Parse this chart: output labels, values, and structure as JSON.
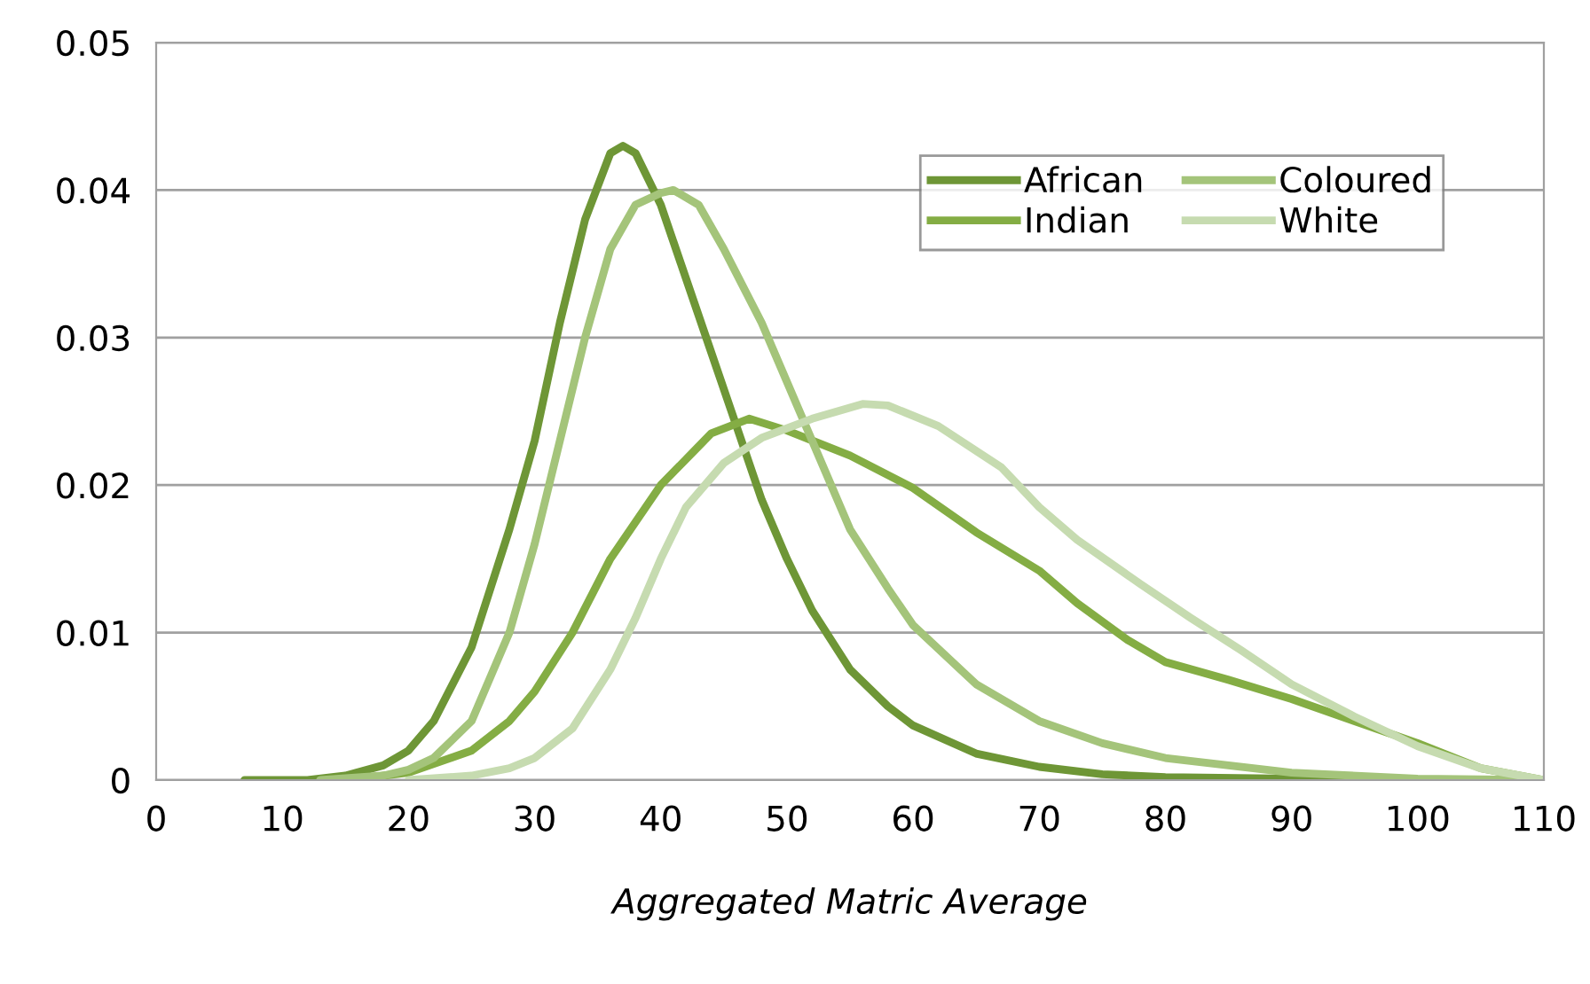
{
  "chart_data": {
    "type": "line",
    "xlabel": "Aggregated Matric Average",
    "xlim": [
      0,
      110
    ],
    "xticks": [
      0,
      10,
      20,
      30,
      40,
      50,
      60,
      70,
      80,
      90,
      100,
      110
    ],
    "ylim": [
      0,
      0.05
    ],
    "yticks": [
      {
        "value": 0,
        "label": "0"
      },
      {
        "value": 0.01,
        "label": "0.01"
      },
      {
        "value": 0.02,
        "label": "0.02"
      },
      {
        "value": 0.03,
        "label": "0.03"
      },
      {
        "value": 0.04,
        "label": "0.04"
      },
      {
        "value": 0.05,
        "label": "0.05"
      }
    ],
    "grid": "y",
    "legend": "top right",
    "marker": "none",
    "line_style": "solid",
    "series": [
      {
        "name": "African",
        "color": "#6e9636",
        "x": [
          7,
          12,
          15,
          18,
          20,
          22,
          25,
          28,
          30,
          32,
          34,
          36,
          37,
          38,
          40,
          42,
          44,
          46,
          48,
          50,
          52,
          55,
          58,
          60,
          65,
          70,
          75,
          80,
          90,
          105
        ],
        "values": [
          0,
          0,
          0.0003,
          0.001,
          0.002,
          0.004,
          0.009,
          0.017,
          0.023,
          0.031,
          0.038,
          0.0425,
          0.043,
          0.0425,
          0.039,
          0.034,
          0.029,
          0.024,
          0.019,
          0.015,
          0.0115,
          0.0075,
          0.005,
          0.0037,
          0.0018,
          0.0009,
          0.0004,
          0.0002,
          0.0001,
          0
        ]
      },
      {
        "name": "Indian",
        "color": "#84ad44",
        "x": [
          15,
          20,
          25,
          28,
          30,
          33,
          36,
          40,
          44,
          47,
          50,
          55,
          60,
          65,
          70,
          73,
          77,
          80,
          85,
          90,
          95,
          100,
          105,
          110
        ],
        "values": [
          0,
          0.0005,
          0.002,
          0.004,
          0.006,
          0.01,
          0.015,
          0.02,
          0.0235,
          0.0245,
          0.0237,
          0.022,
          0.0198,
          0.0168,
          0.0142,
          0.012,
          0.0095,
          0.008,
          0.0068,
          0.0055,
          0.004,
          0.0025,
          0.0008,
          0
        ]
      },
      {
        "name": "Coloured",
        "color": "#a4c47a",
        "x": [
          13,
          18,
          20,
          22,
          25,
          28,
          30,
          32,
          34,
          36,
          38,
          40,
          41,
          43,
          45,
          48,
          50,
          52,
          55,
          58,
          60,
          65,
          70,
          75,
          80,
          90,
          100,
          110
        ],
        "values": [
          0,
          0.0003,
          0.0007,
          0.0015,
          0.004,
          0.01,
          0.016,
          0.023,
          0.03,
          0.036,
          0.039,
          0.0398,
          0.04,
          0.039,
          0.036,
          0.031,
          0.027,
          0.023,
          0.017,
          0.013,
          0.0105,
          0.0065,
          0.004,
          0.0025,
          0.0015,
          0.0005,
          0.0001,
          0
        ]
      },
      {
        "name": "White",
        "color": "#c6dbb0",
        "x": [
          20,
          25,
          28,
          30,
          33,
          36,
          38,
          40,
          42,
          45,
          48,
          52,
          56,
          58,
          62,
          67,
          70,
          73,
          78,
          82,
          86,
          90,
          95,
          100,
          105,
          110
        ],
        "values": [
          0,
          0.0003,
          0.0008,
          0.0015,
          0.0035,
          0.0075,
          0.011,
          0.015,
          0.0185,
          0.0215,
          0.0232,
          0.0245,
          0.0255,
          0.0254,
          0.024,
          0.0212,
          0.0185,
          0.0163,
          0.0133,
          0.011,
          0.0088,
          0.0065,
          0.0043,
          0.0023,
          0.0008,
          0
        ]
      }
    ]
  }
}
